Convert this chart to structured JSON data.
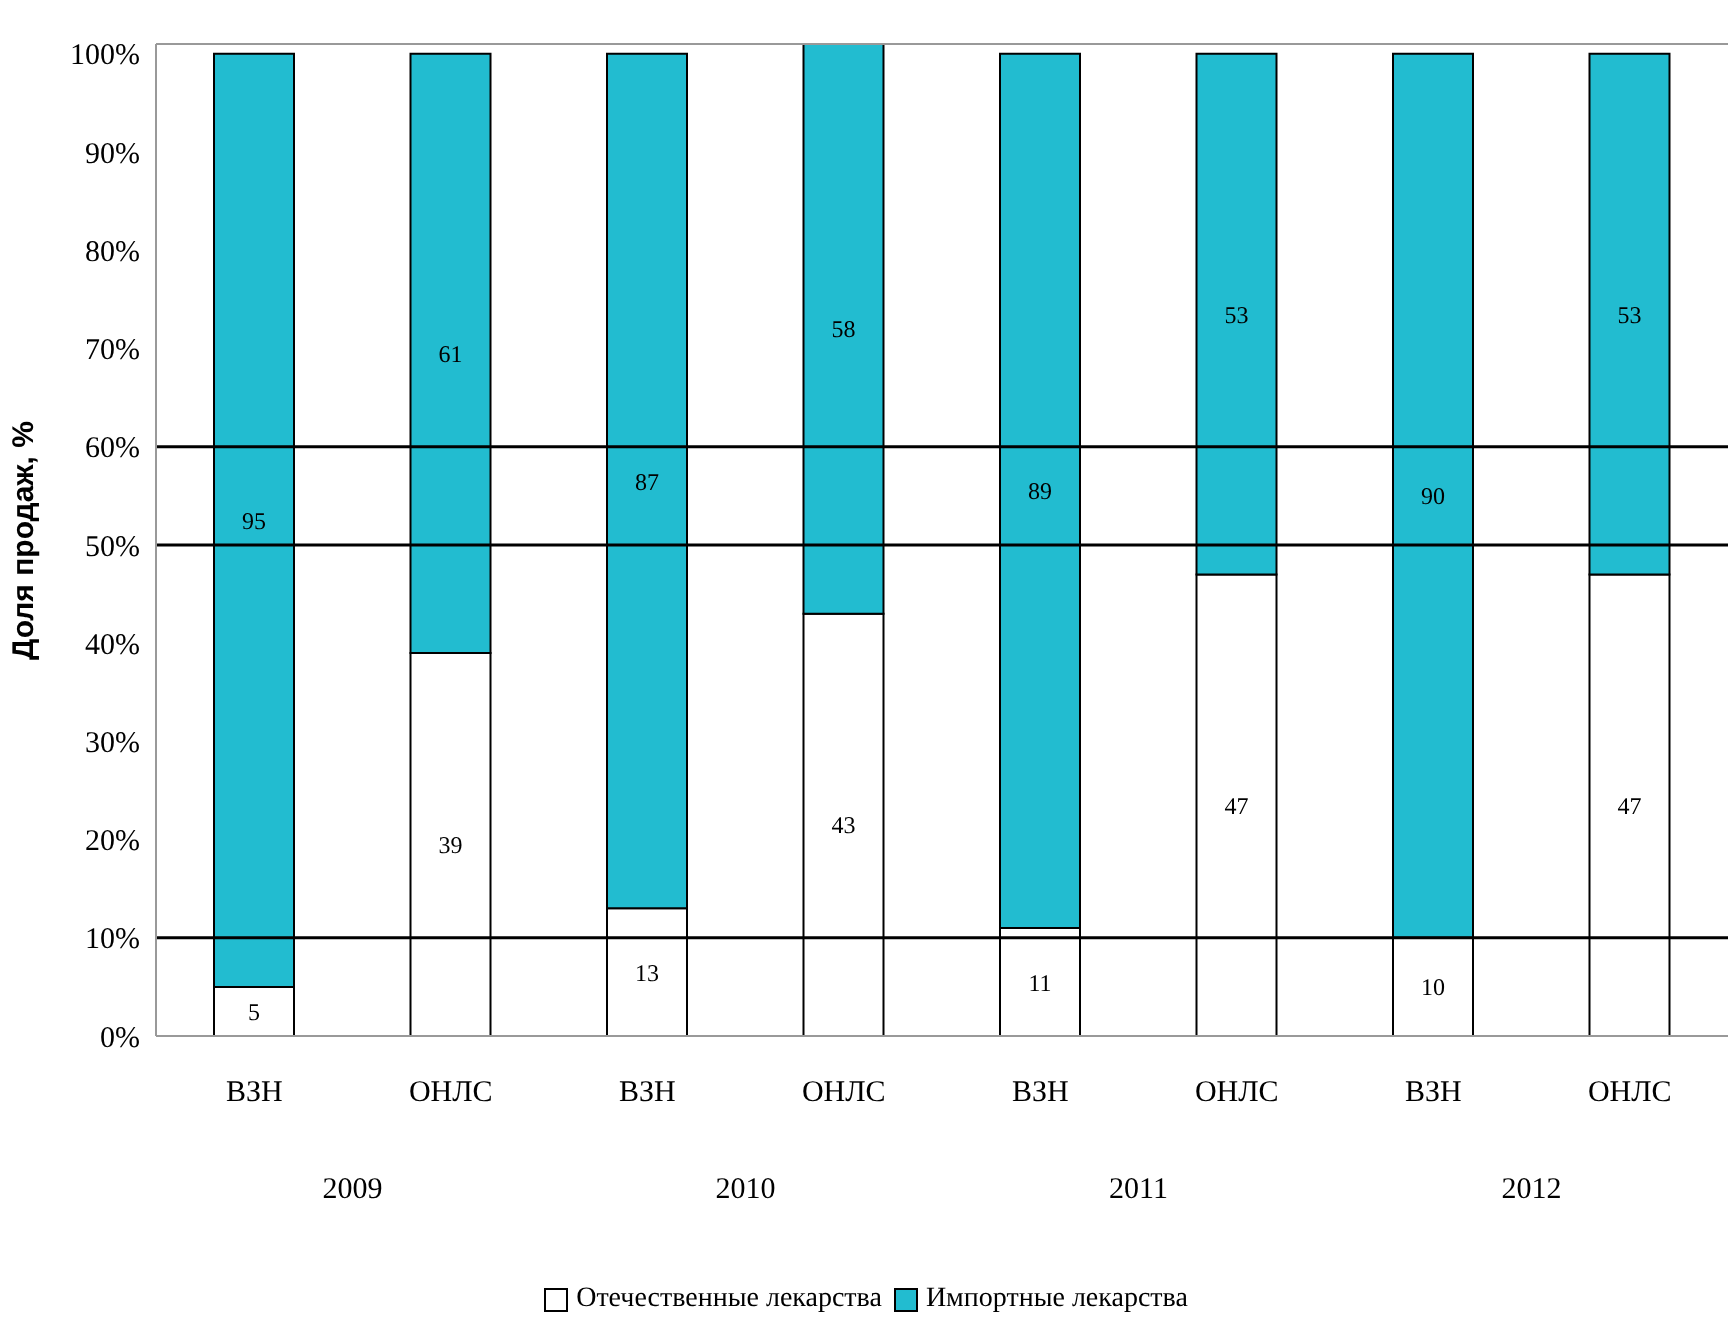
{
  "chart_data": {
    "type": "bar",
    "stacked": true,
    "ylabel": "Доля продаж, %",
    "categories": [
      "ВЗН",
      "ОНЛС",
      "ВЗН",
      "ОНЛС",
      "ВЗН",
      "ОНЛС",
      "ВЗН",
      "ОНЛС"
    ],
    "series": [
      {
        "name": "Отечественные лекарства",
        "color": "#ffffff",
        "values": [
          5,
          39,
          13,
          43,
          11,
          47,
          10,
          47
        ]
      },
      {
        "name": "Импортные лекарства",
        "color": "#22bcd0",
        "values": [
          95,
          61,
          87,
          58,
          89,
          53,
          90,
          53
        ]
      }
    ],
    "ylim": [
      0,
      101
    ],
    "yticks": [
      {
        "value": 0,
        "label": "0%"
      },
      {
        "value": 10,
        "label": "10%"
      },
      {
        "value": 20,
        "label": "20%"
      },
      {
        "value": 30,
        "label": "30%"
      },
      {
        "value": 40,
        "label": "40%"
      },
      {
        "value": 50,
        "label": "50%"
      },
      {
        "value": 60,
        "label": "60%"
      },
      {
        "value": 70,
        "label": "70%"
      },
      {
        "value": 80,
        "label": "80%"
      },
      {
        "value": 90,
        "label": "90%"
      },
      {
        "value": 100,
        "label": "100%"
      }
    ],
    "ref_lines": [
      {
        "axis": "y",
        "value": 10,
        "color": "#000000"
      },
      {
        "axis": "y",
        "value": 50,
        "color": "#000000"
      },
      {
        "axis": "y",
        "value": 60,
        "color": "#000000"
      }
    ],
    "annotations": [
      "2009",
      "2010",
      "2011",
      "2012"
    ],
    "data_labels": true,
    "legend": "bottom"
  }
}
